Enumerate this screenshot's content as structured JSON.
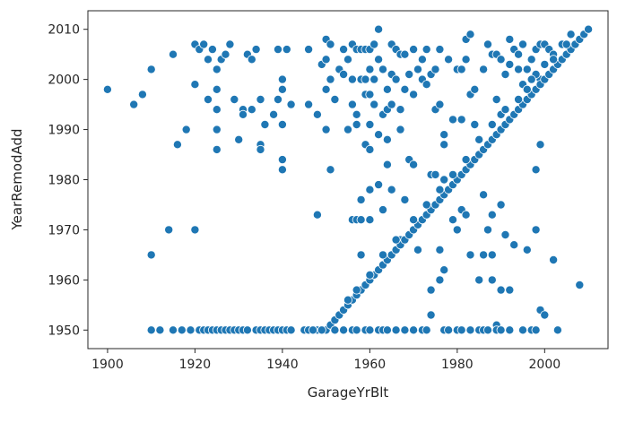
{
  "chart_data": {
    "type": "scatter",
    "title": "",
    "xlabel": "GarageYrBlt",
    "ylabel": "YearRemodAdd",
    "xlim": [
      1895.5,
      2014.5
    ],
    "ylim": [
      1946.3,
      2013.7
    ],
    "xticks": [
      "1900",
      "1920",
      "1940",
      "1960",
      "1980",
      "2000"
    ],
    "xtick_values": [
      1900,
      1920,
      1940,
      1960,
      1980,
      2000
    ],
    "yticks": [
      "1950",
      "1960",
      "1970",
      "1980",
      "1990",
      "2000",
      "2010"
    ],
    "ytick_values": [
      1950,
      1960,
      1970,
      1980,
      1990,
      2000,
      2010
    ],
    "grid": false,
    "legend": "none",
    "colors": {
      "point": "#1f77b4",
      "point_edge": "#ffffff",
      "axes": "#262626"
    },
    "points": [
      [
        1900,
        1998
      ],
      [
        1906,
        1995
      ],
      [
        1908,
        1997
      ],
      [
        1910,
        2002
      ],
      [
        1910,
        1965
      ],
      [
        1910,
        1950
      ],
      [
        1914,
        1970
      ],
      [
        1915,
        2005
      ],
      [
        1916,
        1987
      ],
      [
        1918,
        1990
      ],
      [
        1920,
        2007
      ],
      [
        1920,
        1999
      ],
      [
        1920,
        1970
      ],
      [
        1921,
        2006
      ],
      [
        1922,
        2007
      ],
      [
        1923,
        2004
      ],
      [
        1923,
        1996
      ],
      [
        1924,
        2006
      ],
      [
        1925,
        2002
      ],
      [
        1925,
        1998
      ],
      [
        1925,
        1994
      ],
      [
        1925,
        1990
      ],
      [
        1925,
        1986
      ],
      [
        1926,
        2004
      ],
      [
        1927,
        2005
      ],
      [
        1928,
        2007
      ],
      [
        1929,
        1996
      ],
      [
        1930,
        1988
      ],
      [
        1931,
        1994
      ],
      [
        1931,
        1993
      ],
      [
        1932,
        2005
      ],
      [
        1933,
        2004
      ],
      [
        1933,
        1994
      ],
      [
        1934,
        2006
      ],
      [
        1935,
        1996
      ],
      [
        1935,
        1987
      ],
      [
        1935,
        1986
      ],
      [
        1936,
        1991
      ],
      [
        1938,
        1993
      ],
      [
        1939,
        1996
      ],
      [
        1939,
        2006
      ],
      [
        1940,
        2000
      ],
      [
        1940,
        1998
      ],
      [
        1940,
        1991
      ],
      [
        1940,
        1984
      ],
      [
        1940,
        1982
      ],
      [
        1941,
        2006
      ],
      [
        1942,
        1995
      ],
      [
        1946,
        1995
      ],
      [
        1946,
        2006
      ],
      [
        1948,
        1993
      ],
      [
        1948,
        1973
      ],
      [
        1949,
        2003
      ],
      [
        1950,
        2004
      ],
      [
        1950,
        2008
      ],
      [
        1950,
        1998
      ],
      [
        1950,
        1990
      ],
      [
        1951,
        2007
      ],
      [
        1951,
        2000
      ],
      [
        1951,
        1982
      ],
      [
        1952,
        1996
      ],
      [
        1953,
        2002
      ],
      [
        1954,
        2001
      ],
      [
        1954,
        2006
      ],
      [
        1955,
        1990
      ],
      [
        1955,
        2004
      ],
      [
        1956,
        2007
      ],
      [
        1956,
        2000
      ],
      [
        1956,
        1995
      ],
      [
        1956,
        1972
      ],
      [
        1957,
        1972
      ],
      [
        1957,
        2006
      ],
      [
        1957,
        1991
      ],
      [
        1957,
        1993
      ],
      [
        1958,
        2006
      ],
      [
        1958,
        2000
      ],
      [
        1958,
        1976
      ],
      [
        1958,
        1972
      ],
      [
        1958,
        1965
      ],
      [
        1959,
        2006
      ],
      [
        1959,
        2000
      ],
      [
        1959,
        1997
      ],
      [
        1959,
        1987
      ],
      [
        1960,
        2006
      ],
      [
        1960,
        2002
      ],
      [
        1960,
        1997
      ],
      [
        1960,
        1991
      ],
      [
        1960,
        1986
      ],
      [
        1960,
        1978
      ],
      [
        1960,
        1972
      ],
      [
        1961,
        2007
      ],
      [
        1961,
        2000
      ],
      [
        1961,
        1995
      ],
      [
        1962,
        2010
      ],
      [
        1962,
        2004
      ],
      [
        1962,
        1989
      ],
      [
        1962,
        1979
      ],
      [
        1963,
        2002
      ],
      [
        1963,
        1993
      ],
      [
        1963,
        1974
      ],
      [
        1964,
        1998
      ],
      [
        1964,
        1994
      ],
      [
        1964,
        1988
      ],
      [
        1964,
        1983
      ],
      [
        1965,
        2007
      ],
      [
        1965,
        2001
      ],
      [
        1965,
        1995
      ],
      [
        1965,
        1978
      ],
      [
        1966,
        2006
      ],
      [
        1966,
        2000
      ],
      [
        1967,
        2005
      ],
      [
        1967,
        1994
      ],
      [
        1967,
        1990
      ],
      [
        1967,
        1968
      ],
      [
        1968,
        2005
      ],
      [
        1968,
        1998
      ],
      [
        1968,
        1976
      ],
      [
        1969,
        2001
      ],
      [
        1969,
        1984
      ],
      [
        1970,
        2006
      ],
      [
        1970,
        1997
      ],
      [
        1970,
        1983
      ],
      [
        1971,
        2002
      ],
      [
        1971,
        1966
      ],
      [
        1972,
        2004
      ],
      [
        1972,
        2000
      ],
      [
        1973,
        2006
      ],
      [
        1973,
        1999
      ],
      [
        1974,
        2001
      ],
      [
        1974,
        1981
      ],
      [
        1974,
        1958
      ],
      [
        1974,
        1953
      ],
      [
        1975,
        2002
      ],
      [
        1975,
        1994
      ],
      [
        1975,
        1981
      ],
      [
        1976,
        2006
      ],
      [
        1976,
        1995
      ],
      [
        1976,
        1966
      ],
      [
        1976,
        1960
      ],
      [
        1977,
        1980
      ],
      [
        1977,
        1962
      ],
      [
        1977,
        1989
      ],
      [
        1977,
        1987
      ],
      [
        1978,
        2004
      ],
      [
        1979,
        1992
      ],
      [
        1979,
        1972
      ],
      [
        1980,
        2002
      ],
      [
        1980,
        1970
      ],
      [
        1981,
        2002
      ],
      [
        1981,
        1992
      ],
      [
        1981,
        1974
      ],
      [
        1982,
        2008
      ],
      [
        1982,
        2004
      ],
      [
        1982,
        1973
      ],
      [
        1983,
        2009
      ],
      [
        1983,
        1997
      ],
      [
        1983,
        1965
      ],
      [
        1984,
        1998
      ],
      [
        1984,
        1991
      ],
      [
        1985,
        1960
      ],
      [
        1986,
        2002
      ],
      [
        1986,
        1977
      ],
      [
        1986,
        1965
      ],
      [
        1987,
        2007
      ],
      [
        1987,
        1970
      ],
      [
        1988,
        2005
      ],
      [
        1988,
        1973
      ],
      [
        1988,
        1965
      ],
      [
        1988,
        1960
      ],
      [
        1989,
        2005
      ],
      [
        1989,
        1996
      ],
      [
        1989,
        1951
      ],
      [
        1990,
        2004
      ],
      [
        1990,
        1993
      ],
      [
        1990,
        1975
      ],
      [
        1990,
        1958
      ],
      [
        1991,
        2001
      ],
      [
        1991,
        1969
      ],
      [
        1992,
        2008
      ],
      [
        1992,
        1958
      ],
      [
        1992,
        2003
      ],
      [
        1993,
        2006
      ],
      [
        1993,
        1967
      ],
      [
        1994,
        2002
      ],
      [
        1994,
        2005
      ],
      [
        1995,
        2007
      ],
      [
        1995,
        1999
      ],
      [
        1996,
        2002
      ],
      [
        1996,
        1966
      ],
      [
        1997,
        2004
      ],
      [
        1998,
        2006
      ],
      [
        1998,
        1982
      ],
      [
        1998,
        1970
      ],
      [
        1999,
        2007
      ],
      [
        1999,
        2000
      ],
      [
        1999,
        1987
      ],
      [
        1999,
        1954
      ],
      [
        2000,
        2007
      ],
      [
        2000,
        1953
      ],
      [
        2001,
        2006
      ],
      [
        2002,
        1964
      ],
      [
        2003,
        1950
      ],
      [
        2008,
        1959
      ],
      [
        1948,
        1950
      ],
      [
        1950,
        1950
      ],
      [
        1951,
        1951
      ],
      [
        1952,
        1952
      ],
      [
        1953,
        1953
      ],
      [
        1954,
        1954
      ],
      [
        1955,
        1955
      ],
      [
        1956,
        1956
      ],
      [
        1957,
        1957
      ],
      [
        1958,
        1958
      ],
      [
        1959,
        1959
      ],
      [
        1960,
        1960
      ],
      [
        1961,
        1961
      ],
      [
        1962,
        1962
      ],
      [
        1963,
        1963
      ],
      [
        1964,
        1964
      ],
      [
        1965,
        1965
      ],
      [
        1966,
        1966
      ],
      [
        1967,
        1967
      ],
      [
        1968,
        1968
      ],
      [
        1969,
        1969
      ],
      [
        1970,
        1970
      ],
      [
        1971,
        1971
      ],
      [
        1972,
        1972
      ],
      [
        1973,
        1973
      ],
      [
        1974,
        1974
      ],
      [
        1975,
        1975
      ],
      [
        1976,
        1976
      ],
      [
        1977,
        1977
      ],
      [
        1978,
        1978
      ],
      [
        1979,
        1979
      ],
      [
        1980,
        1980
      ],
      [
        1981,
        1981
      ],
      [
        1982,
        1982
      ],
      [
        1983,
        1983
      ],
      [
        1984,
        1984
      ],
      [
        1985,
        1985
      ],
      [
        1986,
        1986
      ],
      [
        1987,
        1987
      ],
      [
        1988,
        1988
      ],
      [
        1989,
        1989
      ],
      [
        1990,
        1990
      ],
      [
        1991,
        1991
      ],
      [
        1992,
        1992
      ],
      [
        1993,
        1993
      ],
      [
        1994,
        1994
      ],
      [
        1995,
        1995
      ],
      [
        1996,
        1996
      ],
      [
        1997,
        1997
      ],
      [
        1998,
        1998
      ],
      [
        1999,
        1999
      ],
      [
        2000,
        2000
      ],
      [
        2001,
        2001
      ],
      [
        2002,
        2002
      ],
      [
        2003,
        2003
      ],
      [
        2004,
        2004
      ],
      [
        2005,
        2005
      ],
      [
        2006,
        2006
      ],
      [
        2007,
        2007
      ],
      [
        2008,
        2008
      ],
      [
        2009,
        2009
      ],
      [
        2010,
        2010
      ],
      [
        1955,
        1956
      ],
      [
        1957,
        1958
      ],
      [
        1960,
        1961
      ],
      [
        1963,
        1965
      ],
      [
        1966,
        1968
      ],
      [
        1970,
        1972
      ],
      [
        1973,
        1975
      ],
      [
        1976,
        1978
      ],
      [
        1979,
        1981
      ],
      [
        1982,
        1984
      ],
      [
        1985,
        1988
      ],
      [
        1988,
        1991
      ],
      [
        1991,
        1994
      ],
      [
        1994,
        1996
      ],
      [
        1996,
        1998
      ],
      [
        1998,
        2001
      ],
      [
        2000,
        2003
      ],
      [
        2002,
        2005
      ],
      [
        2004,
        2007
      ],
      [
        2006,
        2009
      ],
      [
        2002,
        2004
      ],
      [
        2005,
        2007
      ],
      [
        1997,
        2000
      ],
      [
        1912,
        1950
      ],
      [
        1915,
        1950
      ],
      [
        1917,
        1950
      ],
      [
        1919,
        1950
      ],
      [
        1921,
        1950
      ],
      [
        1922,
        1950
      ],
      [
        1923,
        1950
      ],
      [
        1924,
        1950
      ],
      [
        1925,
        1950
      ],
      [
        1926,
        1950
      ],
      [
        1927,
        1950
      ],
      [
        1928,
        1950
      ],
      [
        1929,
        1950
      ],
      [
        1930,
        1950
      ],
      [
        1931,
        1950
      ],
      [
        1932,
        1950
      ],
      [
        1934,
        1950
      ],
      [
        1935,
        1950
      ],
      [
        1936,
        1950
      ],
      [
        1937,
        1950
      ],
      [
        1938,
        1950
      ],
      [
        1939,
        1950
      ],
      [
        1940,
        1950
      ],
      [
        1941,
        1950
      ],
      [
        1942,
        1950
      ],
      [
        1945,
        1950
      ],
      [
        1946,
        1950
      ],
      [
        1947,
        1950
      ],
      [
        1949,
        1950
      ],
      [
        1952,
        1950
      ],
      [
        1954,
        1950
      ],
      [
        1956,
        1950
      ],
      [
        1957,
        1950
      ],
      [
        1959,
        1950
      ],
      [
        1960,
        1950
      ],
      [
        1962,
        1950
      ],
      [
        1963,
        1950
      ],
      [
        1964,
        1950
      ],
      [
        1966,
        1950
      ],
      [
        1968,
        1950
      ],
      [
        1970,
        1950
      ],
      [
        1972,
        1950
      ],
      [
        1973,
        1950
      ],
      [
        1977,
        1950
      ],
      [
        1978,
        1950
      ],
      [
        1980,
        1950
      ],
      [
        1981,
        1950
      ],
      [
        1983,
        1950
      ],
      [
        1985,
        1950
      ],
      [
        1986,
        1950
      ],
      [
        1987,
        1950
      ],
      [
        1989,
        1950
      ],
      [
        1990,
        1950
      ],
      [
        1992,
        1950
      ],
      [
        1995,
        1950
      ],
      [
        1997,
        1950
      ],
      [
        1998,
        1950
      ]
    ]
  }
}
